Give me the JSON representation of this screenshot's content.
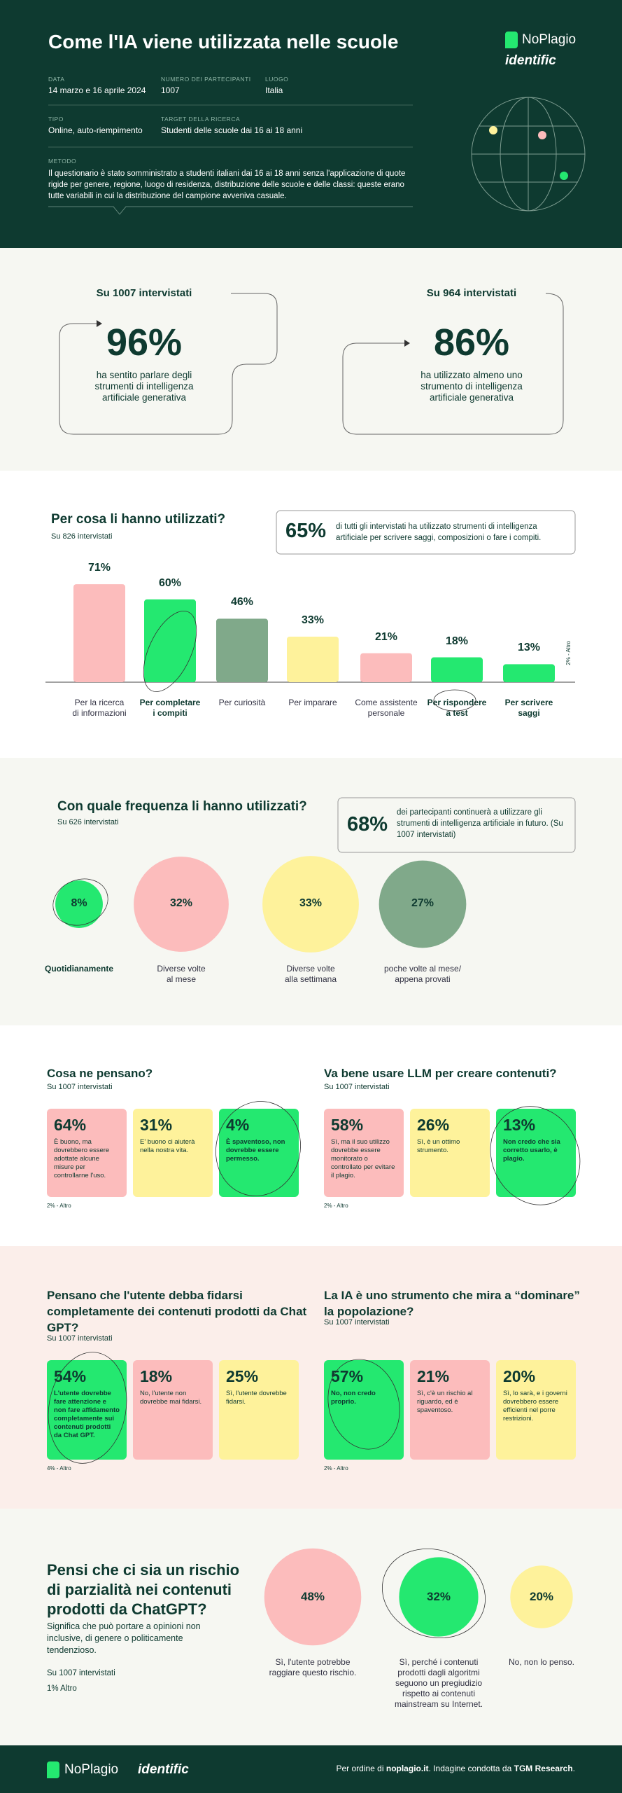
{
  "header": {
    "title": "Come l'IA viene utilizzata nelle scuole",
    "logo": "NoPlagio",
    "logo2": "identific",
    "fields": [
      {
        "label": "DATA",
        "value": "14 marzo e 16 aprile 2024"
      },
      {
        "label": "NUMERO DEI PARTECIPANTI",
        "value": "1007"
      },
      {
        "label": "LUOGO",
        "value": "Italia"
      },
      {
        "label": "TIPO",
        "value": "Online, auto-riempimento"
      },
      {
        "label": "TARGET DELLA RICERCA",
        "value": "Studenti delle scuole dai 16 ai 18 anni"
      }
    ],
    "method_label": "METODO",
    "method": "Il questionario è stato somministrato a studenti italiani dai 16 ai 18 anni senza l'applicazione di quote rigide per genere, regione, luogo di residenza, distribuzione delle scuole e delle classi: queste erano tutte variabili in cui la distribuzione del campione avveniva casuale."
  },
  "awareness": [
    {
      "sample": "Su 1007 intervistati",
      "percent": "96%",
      "text": "ha sentito parlare degli strumenti di intelligenza artificiale generativa"
    },
    {
      "sample": "Su 964 intervistati",
      "percent": "86%",
      "text": "ha utilizzato almeno uno strumento di intelligenza artificiale generativa"
    }
  ],
  "usage": {
    "title": "Per cosa li hanno utilizzati?",
    "sample": "Su 826 intervistati",
    "highlight": {
      "percent": "65%",
      "text": "di tutti gli intervistati ha utilizzato strumenti di intelligenza artificiale per scrivere saggi, composizioni o fare i compiti."
    },
    "other": "2% - Altro",
    "items": [
      {
        "label": "Per la ricerca\ndi informazioni",
        "value": 71,
        "value_label": "71%",
        "color": "#fcbcbc",
        "bold": false
      },
      {
        "label": "Per completare\ni compiti",
        "value": 60,
        "value_label": "60%",
        "color": "#24e870",
        "bold": true
      },
      {
        "label": "Per curiosità",
        "value": 46,
        "value_label": "46%",
        "color": "#80a98a",
        "bold": false
      },
      {
        "label": "Per imparare",
        "value": 33,
        "value_label": "33%",
        "color": "#fef29b",
        "bold": false
      },
      {
        "label": "Come assistente\npersonale",
        "value": 21,
        "value_label": "21%",
        "color": "#fcbcbc",
        "bold": false
      },
      {
        "label": "Per rispondere\na test",
        "value": 18,
        "value_label": "18%",
        "color": "#24e870",
        "bold": true
      },
      {
        "label": "Per scrivere\nsaggi",
        "value": 13,
        "value_label": "13%",
        "color": "#24e870",
        "bold": true
      }
    ]
  },
  "frequency": {
    "title": "Con quale frequenza li hanno utilizzati?",
    "sample": "Su 626 intervistati",
    "highlight": {
      "percent": "68%",
      "text": "dei partecipanti continuerà a utilizzare gli strumenti di intelligenza artificiale in futuro. (Su 1007 intervistati)"
    },
    "items": [
      {
        "label": "Quotidianamente",
        "value": 8,
        "value_label": "8%",
        "color": "#24e870",
        "bold": true
      },
      {
        "label": "Diverse volte\nal mese",
        "value": 32,
        "value_label": "32%",
        "color": "#fcbcbc",
        "bold": false
      },
      {
        "label": "Diverse volte\nalla settimana",
        "value": 33,
        "value_label": "33%",
        "color": "#fef29b",
        "bold": false
      },
      {
        "label": "poche volte al mese/\nappena provati",
        "value": 27,
        "value_label": "27%",
        "color": "#80a98a",
        "bold": false
      }
    ]
  },
  "opinions": [
    {
      "title": "Cosa ne pensano?",
      "sample": "Su 1007 intervistati",
      "other": "2% - Altro",
      "cards": [
        {
          "percent": "64%",
          "text": "È buono, ma dovrebbero essere adottate alcune misure per controllarne l'uso.",
          "color": "#fcbcbc",
          "bold": false
        },
        {
          "percent": "31%",
          "text": "E' buono ci aiuterà nella nostra vita.",
          "color": "#fef29b",
          "bold": false
        },
        {
          "percent": "4%",
          "text": "È spaventoso, non dovrebbe essere permesso.",
          "color": "#24e870",
          "bold": true
        }
      ]
    },
    {
      "title": "Va bene usare LLM per creare contenuti?",
      "sample": "Su 1007 intervistati",
      "other": "2% - Altro",
      "cards": [
        {
          "percent": "58%",
          "text": "Sì, ma il suo utilizzo dovrebbe essere monitorato o controllato per evitare il plagio.",
          "color": "#fcbcbc",
          "bold": false
        },
        {
          "percent": "26%",
          "text": "Sì, è un ottimo strumento.",
          "color": "#fef29b",
          "bold": false
        },
        {
          "percent": "13%",
          "text": "Non credo che sia corretto usarlo, è plagio.",
          "color": "#24e870",
          "bold": true
        }
      ]
    }
  ],
  "trust": [
    {
      "title": "Pensano che l'utente debba fidarsi completamente dei contenuti prodotti da Chat GPT?",
      "sample": "Su 1007 intervistati",
      "other": "4% - Altro",
      "cards": [
        {
          "percent": "54%",
          "text": "L'utente dovrebbe fare attenzione e non fare affidamento completamente sui contenuti prodotti da Chat GPT.",
          "color": "#24e870",
          "bold": true
        },
        {
          "percent": "18%",
          "text": "No, l'utente non dovrebbe mai fidarsi.",
          "color": "#fcbcbc",
          "bold": false
        },
        {
          "percent": "25%",
          "text": "Sì, l'utente dovrebbe fidarsi.",
          "color": "#fef29b",
          "bold": false
        }
      ]
    },
    {
      "title": "La IA è uno strumento che mira a “dominare” la popolazione?",
      "sample": "Su 1007 intervistati",
      "other": "2% - Altro",
      "cards": [
        {
          "percent": "57%",
          "text": "No, non credo proprio.",
          "color": "#24e870",
          "bold": true
        },
        {
          "percent": "21%",
          "text": "Sì, c'è un rischio al riguardo, ed è spaventoso.",
          "color": "#fcbcbc",
          "bold": false
        },
        {
          "percent": "20%",
          "text": "Sì, lo sarà, e i governi dovrebbero essere efficienti nel porre restrizioni.",
          "color": "#fef29b",
          "bold": false
        }
      ]
    }
  ],
  "bias": {
    "title": "Pensi che ci sia un rischio di parzialità nei contenuti prodotti da ChatGPT?",
    "subtitle": "Significa che può portare a opinioni non inclusive, di genere o politicamente tendenzioso.",
    "sample": "Su 1007 intervistati",
    "other": "1% Altro",
    "items": [
      {
        "label": "Sì, l'utente potrebbe raggiare questo rischio.",
        "value": 48,
        "value_label": "48%",
        "color": "#fcbcbc"
      },
      {
        "label": "Sì, perché i contenuti prodotti dagli algoritmi seguono un pregiudizio rispetto ai contenuti mainstream su Internet.",
        "value": 32,
        "value_label": "32%",
        "color": "#24e870"
      },
      {
        "label": "No, non lo penso.",
        "value": 20,
        "value_label": "20%",
        "color": "#fef29b"
      }
    ]
  },
  "footer": {
    "logo": "NoPlagio",
    "logo2": "identific",
    "parts": [
      {
        "text": "Per ordine di ",
        "bold": false
      },
      {
        "text": "noplagio.it",
        "bold": true
      },
      {
        "text": ". Indagine condotta da ",
        "bold": false
      },
      {
        "text": "TGM Research",
        "bold": true
      },
      {
        "text": ".",
        "bold": false
      }
    ]
  }
}
